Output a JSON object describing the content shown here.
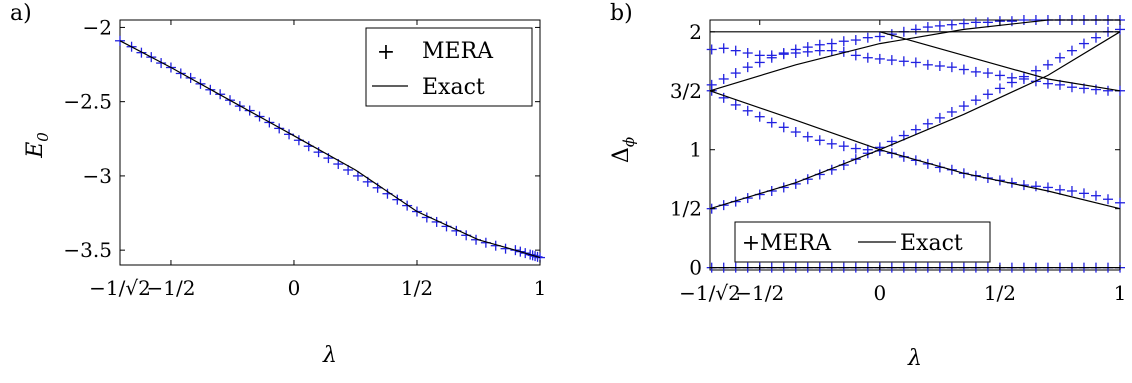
{
  "chart_data": [
    {
      "panel_label": "a)",
      "type": "line",
      "xlabel": "λ",
      "ylabel": "E",
      "ylabel_sub": "0",
      "xlim": [
        -0.7071,
        1.0
      ],
      "ylim": [
        -3.6,
        -1.95
      ],
      "xticks": [
        {
          "value": -0.7071,
          "label": "−1/√2"
        },
        {
          "value": -0.5,
          "label": "−1/2"
        },
        {
          "value": 0,
          "label": "0"
        },
        {
          "value": 0.5,
          "label": "1/2"
        },
        {
          "value": 1,
          "label": "1"
        }
      ],
      "yticks": [
        {
          "value": -2.0,
          "label": "−2"
        },
        {
          "value": -2.5,
          "label": "−2.5"
        },
        {
          "value": -3.0,
          "label": "−3"
        },
        {
          "value": -3.5,
          "label": "−3.5"
        }
      ],
      "legend": {
        "position": "top-right",
        "entries": [
          "MERA",
          "Exact"
        ]
      },
      "series": [
        {
          "name": "MERA",
          "marker": "+",
          "color": "#2020e0",
          "x": [
            -0.7071,
            -0.66,
            -0.62,
            -0.58,
            -0.54,
            -0.5,
            -0.46,
            -0.42,
            -0.38,
            -0.34,
            -0.3,
            -0.26,
            -0.22,
            -0.18,
            -0.14,
            -0.1,
            -0.06,
            -0.02,
            0.02,
            0.06,
            0.1,
            0.14,
            0.18,
            0.22,
            0.26,
            0.3,
            0.34,
            0.38,
            0.42,
            0.46,
            0.5,
            0.54,
            0.58,
            0.62,
            0.66,
            0.7,
            0.74,
            0.78,
            0.82,
            0.86,
            0.9,
            0.92,
            0.94,
            0.96,
            0.97,
            0.98,
            0.99,
            1.0
          ],
          "y": [
            -2.09,
            -2.13,
            -2.17,
            -2.2,
            -2.24,
            -2.27,
            -2.31,
            -2.34,
            -2.38,
            -2.42,
            -2.45,
            -2.49,
            -2.53,
            -2.56,
            -2.6,
            -2.64,
            -2.68,
            -2.72,
            -2.76,
            -2.8,
            -2.84,
            -2.88,
            -2.92,
            -2.96,
            -3.0,
            -3.04,
            -3.08,
            -3.12,
            -3.16,
            -3.2,
            -3.24,
            -3.28,
            -3.31,
            -3.34,
            -3.37,
            -3.4,
            -3.43,
            -3.45,
            -3.47,
            -3.49,
            -3.5,
            -3.51,
            -3.52,
            -3.53,
            -3.535,
            -3.54,
            -3.545,
            -3.55
          ]
        },
        {
          "name": "Exact",
          "marker": "line",
          "color": "#000000",
          "x": [
            -0.7071,
            -0.5,
            -0.25,
            0.0,
            0.25,
            0.5,
            0.75,
            0.9,
            1.0
          ],
          "y": [
            -2.09,
            -2.27,
            -2.5,
            -2.73,
            -2.96,
            -3.24,
            -3.43,
            -3.5,
            -3.55
          ]
        }
      ]
    },
    {
      "panel_label": "b)",
      "type": "scatter",
      "xlabel": "λ",
      "ylabel": "Δ",
      "ylabel_sub": "ϕ",
      "xlim": [
        -0.7071,
        1.0
      ],
      "ylim": [
        -0.02,
        2.1
      ],
      "xticks": [
        {
          "value": -0.7071,
          "label": "−1/√2"
        },
        {
          "value": -0.5,
          "label": "−1/2"
        },
        {
          "value": 0,
          "label": "0"
        },
        {
          "value": 0.5,
          "label": "1/2"
        },
        {
          "value": 1,
          "label": "1"
        }
      ],
      "yticks": [
        {
          "value": 0,
          "label": "0"
        },
        {
          "value": 0.5,
          "label": "1/2"
        },
        {
          "value": 1,
          "label": "1"
        },
        {
          "value": 1.5,
          "label": "3/2"
        },
        {
          "value": 2,
          "label": "2"
        }
      ],
      "legend": {
        "position": "bottom-left",
        "entries": [
          "MERA",
          "Exact"
        ]
      },
      "series": [
        {
          "name": "MERA",
          "marker": "+",
          "color": "#2020e0",
          "x": [
            -0.7,
            -0.65,
            -0.6,
            -0.55,
            -0.5,
            -0.45,
            -0.4,
            -0.35,
            -0.3,
            -0.25,
            -0.2,
            -0.15,
            -0.1,
            -0.05,
            0.0,
            0.05,
            0.1,
            0.15,
            0.2,
            0.25,
            0.3,
            0.35,
            0.4,
            0.45,
            0.5,
            0.55,
            0.6,
            0.65,
            0.7,
            0.75,
            0.8,
            0.85,
            0.9,
            0.95,
            1.0,
            -0.7,
            -0.65,
            -0.6,
            -0.55,
            -0.5,
            -0.45,
            -0.4,
            -0.35,
            -0.3,
            -0.25,
            -0.2,
            -0.15,
            -0.1,
            -0.05,
            0.0,
            0.05,
            0.1,
            0.15,
            0.2,
            0.25,
            0.3,
            0.35,
            0.4,
            0.45,
            0.5,
            0.55,
            0.6,
            0.65,
            0.7,
            0.75,
            0.8,
            0.85,
            0.9,
            0.95,
            1.0,
            -0.7,
            -0.65,
            -0.6,
            -0.55,
            -0.5,
            -0.45,
            -0.4,
            -0.35,
            -0.3,
            -0.25,
            -0.2,
            -0.15,
            -0.1,
            -0.05,
            0.0,
            0.05,
            0.1,
            0.15,
            0.2,
            0.25,
            0.3,
            0.35,
            0.4,
            0.45,
            0.5,
            0.55,
            0.6,
            0.65,
            0.7,
            0.75,
            0.8,
            0.85,
            0.9,
            0.95,
            1.0,
            -0.7,
            -0.65,
            -0.6,
            -0.55,
            -0.5,
            -0.45,
            -0.4,
            -0.35,
            -0.3,
            -0.25,
            -0.2,
            -0.15,
            -0.1,
            -0.05,
            0.0,
            0.05,
            0.1,
            0.15,
            0.2,
            0.25,
            0.3,
            0.35,
            0.4,
            0.45,
            0.5,
            0.55,
            0.6,
            0.65,
            0.7,
            0.75,
            0.8,
            0.85,
            0.9,
            0.95,
            1.0,
            -0.7,
            -0.65,
            -0.6,
            -0.55,
            -0.5,
            -0.45,
            -0.4,
            -0.35,
            -0.3,
            -0.25,
            -0.2,
            -0.15,
            -0.1,
            -0.05,
            0.0,
            0.05,
            0.1,
            0.15,
            0.2,
            0.25,
            0.3,
            0.35,
            0.4,
            0.45,
            0.5,
            0.55,
            0.6,
            0.65,
            0.7,
            0.75,
            0.8,
            0.85,
            0.9,
            0.95,
            1.0
          ],
          "y": [
            0.5,
            0.53,
            0.56,
            0.59,
            0.62,
            0.65,
            0.68,
            0.71,
            0.75,
            0.79,
            0.83,
            0.87,
            0.92,
            0.97,
            1.02,
            1.07,
            1.12,
            1.17,
            1.22,
            1.27,
            1.32,
            1.37,
            1.42,
            1.47,
            1.52,
            1.57,
            1.62,
            1.67,
            1.72,
            1.78,
            1.84,
            1.9,
            1.95,
            2.0,
            2.02,
            1.5,
            1.44,
            1.38,
            1.33,
            1.28,
            1.23,
            1.19,
            1.15,
            1.11,
            1.08,
            1.05,
            1.03,
            1.01,
            1.0,
            0.99,
            0.97,
            0.94,
            0.91,
            0.88,
            0.85,
            0.83,
            0.8,
            0.78,
            0.76,
            0.74,
            0.72,
            0.7,
            0.69,
            0.68,
            0.66,
            0.65,
            0.63,
            0.61,
            0.58,
            0.55,
            1.55,
            1.6,
            1.65,
            1.7,
            1.74,
            1.78,
            1.82,
            1.85,
            1.87,
            1.89,
            1.9,
            1.92,
            1.93,
            1.95,
            1.96,
            1.98,
            2.0,
            2.02,
            2.04,
            2.05,
            2.06,
            2.07,
            2.08,
            2.08,
            2.09,
            2.09,
            2.1,
            2.1,
            2.1,
            2.1,
            2.1,
            2.1,
            2.1,
            2.1,
            2.1,
            1.85,
            1.86,
            1.84,
            1.82,
            1.8,
            1.8,
            1.81,
            1.82,
            1.83,
            1.84,
            1.84,
            1.83,
            1.8,
            1.78,
            1.77,
            1.76,
            1.75,
            1.74,
            1.72,
            1.71,
            1.7,
            1.68,
            1.66,
            1.65,
            1.63,
            1.61,
            1.6,
            1.58,
            1.56,
            1.55,
            1.53,
            1.52,
            1.51,
            1.5,
            1.5,
            0,
            0,
            0,
            0,
            0,
            0,
            0,
            0,
            0,
            0,
            0,
            0,
            0,
            0,
            0,
            0,
            0,
            0,
            0,
            0,
            0,
            0,
            0,
            0,
            0,
            0,
            0,
            0,
            0,
            0,
            0,
            0,
            0,
            0,
            0
          ]
        },
        {
          "name": "Exact",
          "marker": "line",
          "color": "#000000",
          "lines": [
            {
              "x": [
                -0.7071,
                -0.35,
                0.0,
                0.35,
                0.7,
                1.0
              ],
              "y": [
                0.5,
                0.72,
                1.0,
                1.3,
                1.63,
                2.0
              ]
            },
            {
              "x": [
                -0.7071,
                -0.35,
                0.0,
                0.35,
                0.7,
                1.0
              ],
              "y": [
                1.5,
                1.25,
                1.0,
                0.8,
                0.65,
                0.5
              ]
            },
            {
              "x": [
                -0.7071,
                -0.35,
                0.0,
                0.35,
                0.7,
                1.0
              ],
              "y": [
                1.5,
                1.72,
                1.9,
                2.02,
                2.1,
                2.1
              ]
            },
            {
              "x": [
                -0.7071,
                -0.35,
                0.0,
                0.35,
                0.7,
                1.0
              ],
              "y": [
                2.0,
                2.0,
                2.0,
                2.0,
                2.0,
                2.0
              ]
            },
            {
              "x": [
                0.0,
                0.35,
                0.7,
                1.0
              ],
              "y": [
                2.0,
                1.8,
                1.6,
                1.5
              ]
            },
            {
              "x": [
                -0.7071,
                1.0
              ],
              "y": [
                0,
                0
              ]
            }
          ]
        }
      ]
    }
  ]
}
